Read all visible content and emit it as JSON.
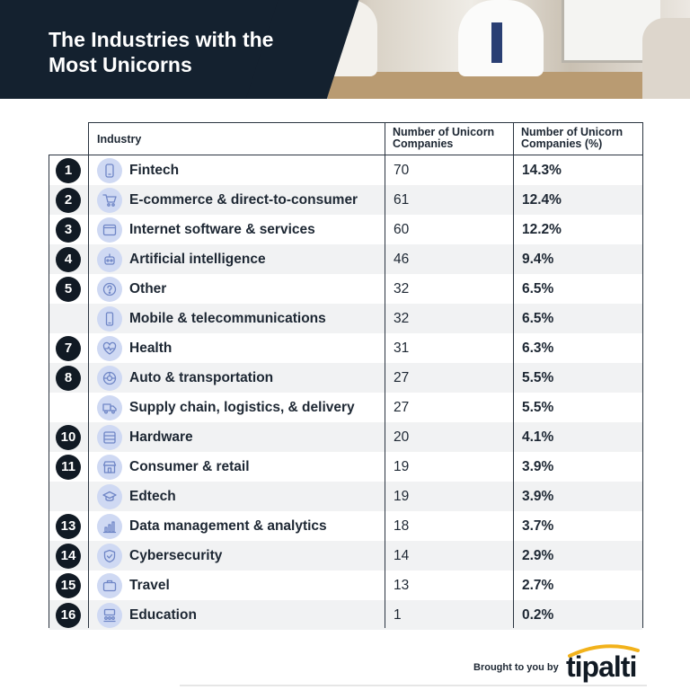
{
  "header": {
    "title": "The Industries with the Most Unicorns"
  },
  "table": {
    "columns": [
      "Industry",
      "Number of Unicorn Companies",
      "Number of Unicorn Companies (%)"
    ]
  },
  "chart_data": {
    "type": "table",
    "title": "The Industries with the Most Unicorns",
    "columns": [
      "Industry",
      "Number of Unicorn Companies",
      "Number of Unicorn Companies (%)"
    ],
    "rows": [
      {
        "rank": "1",
        "icon": "phone-card-icon",
        "industry": "Fintech",
        "count": "70",
        "percent": "14.3%"
      },
      {
        "rank": "2",
        "icon": "shopping-cart-icon",
        "industry": "E-commerce & direct-to-consumer",
        "count": "61",
        "percent": "12.4%"
      },
      {
        "rank": "3",
        "icon": "browser-window-icon",
        "industry": "Internet software & services",
        "count": "60",
        "percent": "12.2%"
      },
      {
        "rank": "4",
        "icon": "robot-icon",
        "industry": "Artificial intelligence",
        "count": "46",
        "percent": "9.4%"
      },
      {
        "rank": "5",
        "icon": "question-icon",
        "industry": "Other",
        "count": "32",
        "percent": "6.5%"
      },
      {
        "rank": "",
        "icon": "mobile-phone-icon",
        "industry": "Mobile & telecommunications",
        "count": "32",
        "percent": "6.5%"
      },
      {
        "rank": "7",
        "icon": "heart-pulse-icon",
        "industry": "Health",
        "count": "31",
        "percent": "6.3%"
      },
      {
        "rank": "8",
        "icon": "wheel-icon",
        "industry": "Auto & transportation",
        "count": "27",
        "percent": "5.5%"
      },
      {
        "rank": "",
        "icon": "delivery-truck-icon",
        "industry": "Supply chain, logistics, & delivery",
        "count": "27",
        "percent": "5.5%"
      },
      {
        "rank": "10",
        "icon": "hardware-icon",
        "industry": "Hardware",
        "count": "20",
        "percent": "4.1%"
      },
      {
        "rank": "11",
        "icon": "storefront-icon",
        "industry": "Consumer & retail",
        "count": "19",
        "percent": "3.9%"
      },
      {
        "rank": "",
        "icon": "graduation-cap-icon",
        "industry": "Edtech",
        "count": "19",
        "percent": "3.9%"
      },
      {
        "rank": "13",
        "icon": "analytics-chart-icon",
        "industry": "Data management & analytics",
        "count": "18",
        "percent": "3.7%"
      },
      {
        "rank": "14",
        "icon": "shield-icon",
        "industry": "Cybersecurity",
        "count": "14",
        "percent": "2.9%"
      },
      {
        "rank": "15",
        "icon": "suitcase-icon",
        "industry": "Travel",
        "count": "13",
        "percent": "2.7%"
      },
      {
        "rank": "16",
        "icon": "classroom-icon",
        "industry": "Education",
        "count": "1",
        "percent": "0.2%"
      }
    ]
  },
  "footer": {
    "brought_by": "Brought to you by",
    "logo": "tipalti"
  },
  "colors": {
    "header_bg": "#14212f",
    "rank_badge": "#111a24",
    "icon_circle": "#cfd9f3",
    "icon_stroke": "#6f86c6",
    "alt_row": "#f1f2f3",
    "logo_swoosh": "#f2b21b"
  }
}
